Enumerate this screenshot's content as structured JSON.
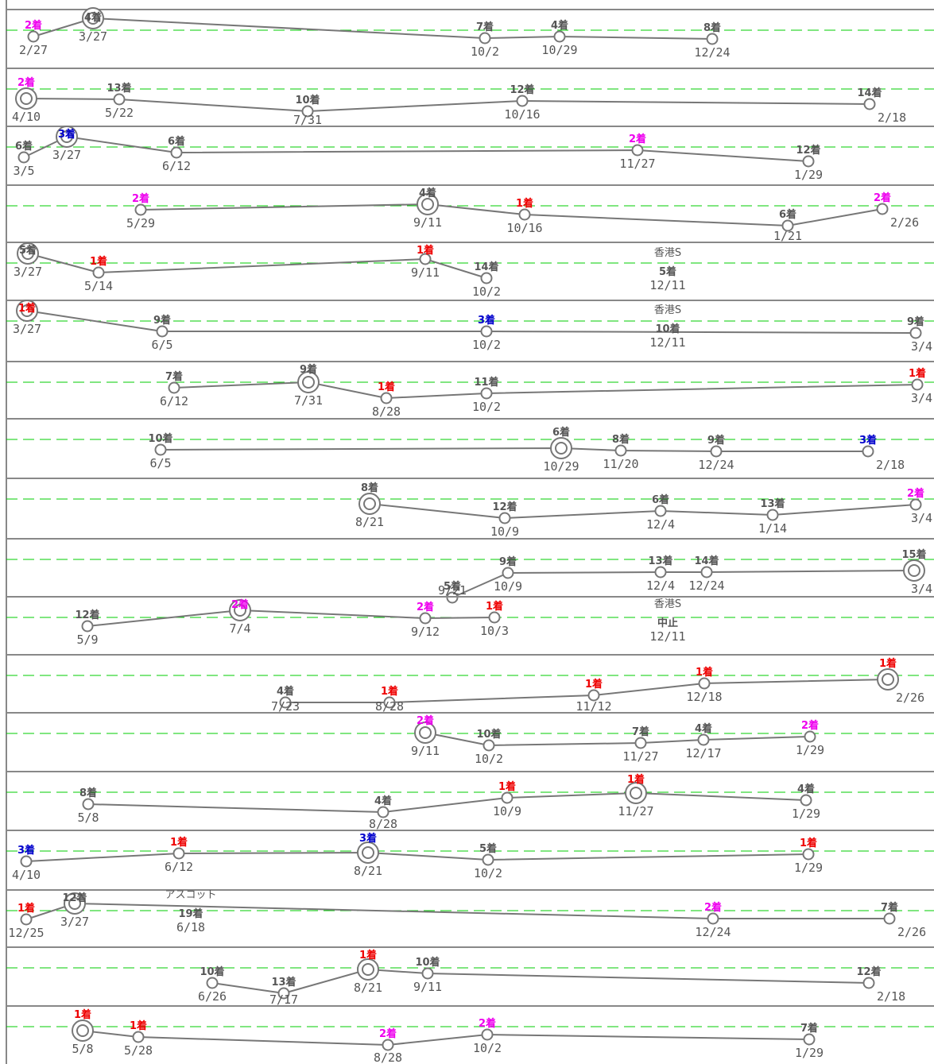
{
  "chart_data": {
    "type": "line",
    "title": "",
    "rank_colors": {
      "1": "#ee0000",
      "2": "#ee00ee",
      "3": "#0000cc",
      "other": "#555555"
    },
    "colors": {
      "grid": "#00cc00",
      "line": "#777777",
      "border": "#888888"
    },
    "rows": [
      {
        "points": [
          {
            "date": "2/27",
            "rank": "2着",
            "ring": false
          },
          {
            "date": "3/27",
            "rank": "4着",
            "ring": true
          },
          {
            "date": "10/2",
            "rank": "7着",
            "ring": false
          },
          {
            "date": "10/29",
            "rank": "4着",
            "ring": false
          },
          {
            "date": "12/24",
            "rank": "8着",
            "ring": false
          }
        ]
      },
      {
        "points": [
          {
            "date": "4/10",
            "rank": "2着",
            "ring": true
          },
          {
            "date": "5/22",
            "rank": "13着",
            "ring": false
          },
          {
            "date": "7/31",
            "rank": "10着",
            "ring": false
          },
          {
            "date": "10/16",
            "rank": "12着",
            "ring": false
          },
          {
            "date": "2/18",
            "rank": "14着",
            "ring": false
          }
        ]
      },
      {
        "points": [
          {
            "date": "3/5",
            "rank": "6着",
            "ring": false
          },
          {
            "date": "3/27",
            "rank": "3着",
            "ring": true
          },
          {
            "date": "6/12",
            "rank": "6着",
            "ring": false
          },
          {
            "date": "11/27",
            "rank": "2着",
            "ring": false
          },
          {
            "date": "1/29",
            "rank": "12着",
            "ring": false
          }
        ]
      },
      {
        "points": [
          {
            "date": "5/29",
            "rank": "2着",
            "ring": false
          },
          {
            "date": "9/11",
            "rank": "4着",
            "ring": true
          },
          {
            "date": "10/16",
            "rank": "1着",
            "ring": false
          },
          {
            "date": "1/21",
            "rank": "6着",
            "ring": false
          },
          {
            "date": "2/26",
            "rank": "2着",
            "ring": false
          }
        ]
      },
      {
        "points": [
          {
            "date": "3/27",
            "rank": "5着",
            "ring": true
          },
          {
            "date": "5/14",
            "rank": "1着",
            "ring": false
          },
          {
            "date": "9/11",
            "rank": "1着",
            "ring": false
          },
          {
            "date": "10/2",
            "rank": "14着",
            "ring": false
          }
        ],
        "overseas": {
          "race": "香港S",
          "rank": "5着",
          "date": "12/11"
        }
      },
      {
        "points": [
          {
            "date": "3/27",
            "rank": "1着",
            "ring": true
          },
          {
            "date": "6/5",
            "rank": "9着",
            "ring": false
          },
          {
            "date": "10/2",
            "rank": "3着",
            "ring": false
          },
          {
            "date": "3/4",
            "rank": "9着",
            "ring": false
          }
        ],
        "overseas": {
          "race": "香港S",
          "rank": "10着",
          "date": "12/11"
        }
      },
      {
        "points": [
          {
            "date": "6/12",
            "rank": "7着",
            "ring": false
          },
          {
            "date": "7/31",
            "rank": "9着",
            "ring": true
          },
          {
            "date": "8/28",
            "rank": "1着",
            "ring": false
          },
          {
            "date": "10/2",
            "rank": "11着",
            "ring": false
          },
          {
            "date": "3/4",
            "rank": "1着",
            "ring": false
          }
        ]
      },
      {
        "points": [
          {
            "date": "6/5",
            "rank": "10着",
            "ring": false
          },
          {
            "date": "10/29",
            "rank": "6着",
            "ring": true
          },
          {
            "date": "11/20",
            "rank": "8着",
            "ring": false
          },
          {
            "date": "12/24",
            "rank": "9着",
            "ring": false
          },
          {
            "date": "2/18",
            "rank": "3着",
            "ring": false
          }
        ]
      },
      {
        "points": [
          {
            "date": "8/21",
            "rank": "8着",
            "ring": true
          },
          {
            "date": "10/9",
            "rank": "12着",
            "ring": false
          },
          {
            "date": "12/4",
            "rank": "6着",
            "ring": false
          },
          {
            "date": "1/14",
            "rank": "13着",
            "ring": false
          },
          {
            "date": "3/4",
            "rank": "2着",
            "ring": false
          }
        ]
      },
      {
        "points": [
          {
            "date": "9/21",
            "rank": "5着",
            "ring": false
          },
          {
            "date": "10/9",
            "rank": "9着",
            "ring": false
          },
          {
            "date": "12/4",
            "rank": "13着",
            "ring": false
          },
          {
            "date": "12/24",
            "rank": "14着",
            "ring": false
          },
          {
            "date": "3/4",
            "rank": "15着",
            "ring": true
          }
        ]
      },
      {
        "points": [
          {
            "date": "5/9",
            "rank": "12着",
            "ring": false
          },
          {
            "date": "7/4",
            "rank": "2着",
            "ring": true
          },
          {
            "date": "9/12",
            "rank": "2着",
            "ring": false
          },
          {
            "date": "10/3",
            "rank": "1着",
            "ring": false
          }
        ],
        "overseas": {
          "race": "香港S",
          "rank": "中止",
          "date": "12/11"
        }
      },
      {
        "points": [
          {
            "date": "7/23",
            "rank": "4着",
            "ring": false
          },
          {
            "date": "8/28",
            "rank": "1着",
            "ring": false
          },
          {
            "date": "11/12",
            "rank": "1着",
            "ring": false
          },
          {
            "date": "12/18",
            "rank": "1着",
            "ring": false
          },
          {
            "date": "2/26",
            "rank": "1着",
            "ring": true
          }
        ]
      },
      {
        "points": [
          {
            "date": "9/11",
            "rank": "2着",
            "ring": true
          },
          {
            "date": "10/2",
            "rank": "10着",
            "ring": false
          },
          {
            "date": "11/27",
            "rank": "7着",
            "ring": false
          },
          {
            "date": "12/17",
            "rank": "4着",
            "ring": false
          },
          {
            "date": "1/29",
            "rank": "2着",
            "ring": false
          }
        ]
      },
      {
        "points": [
          {
            "date": "5/8",
            "rank": "8着",
            "ring": false
          },
          {
            "date": "8/28",
            "rank": "4着",
            "ring": false
          },
          {
            "date": "10/9",
            "rank": "1着",
            "ring": false
          },
          {
            "date": "11/27",
            "rank": "1着",
            "ring": true
          },
          {
            "date": "1/29",
            "rank": "4着",
            "ring": false
          }
        ]
      },
      {
        "points": [
          {
            "date": "4/10",
            "rank": "3着",
            "ring": false
          },
          {
            "date": "6/12",
            "rank": "1着",
            "ring": false
          },
          {
            "date": "8/21",
            "rank": "3着",
            "ring": true
          },
          {
            "date": "10/2",
            "rank": "5着",
            "ring": false
          },
          {
            "date": "1/29",
            "rank": "1着",
            "ring": false
          }
        ]
      },
      {
        "points": [
          {
            "date": "12/25",
            "rank": "1着",
            "ring": false
          },
          {
            "date": "3/27",
            "rank": "12着",
            "ring": true
          },
          {
            "date": "12/24",
            "rank": "2着",
            "ring": false
          },
          {
            "date": "2/26",
            "rank": "7着",
            "ring": false
          }
        ],
        "overseas": {
          "race": "アスコット",
          "rank": "19着",
          "date": "6/18"
        }
      },
      {
        "points": [
          {
            "date": "6/26",
            "rank": "10着",
            "ring": false
          },
          {
            "date": "7/17",
            "rank": "13着",
            "ring": false
          },
          {
            "date": "8/21",
            "rank": "1着",
            "ring": true
          },
          {
            "date": "9/11",
            "rank": "10着",
            "ring": false
          },
          {
            "date": "2/18",
            "rank": "12着",
            "ring": false
          }
        ]
      },
      {
        "points": [
          {
            "date": "5/8",
            "rank": "1着",
            "ring": true
          },
          {
            "date": "5/28",
            "rank": "1着",
            "ring": false
          },
          {
            "date": "8/28",
            "rank": "2着",
            "ring": false
          },
          {
            "date": "10/2",
            "rank": "2着",
            "ring": false
          },
          {
            "date": "1/29",
            "rank": "7着",
            "ring": false
          }
        ]
      }
    ]
  }
}
